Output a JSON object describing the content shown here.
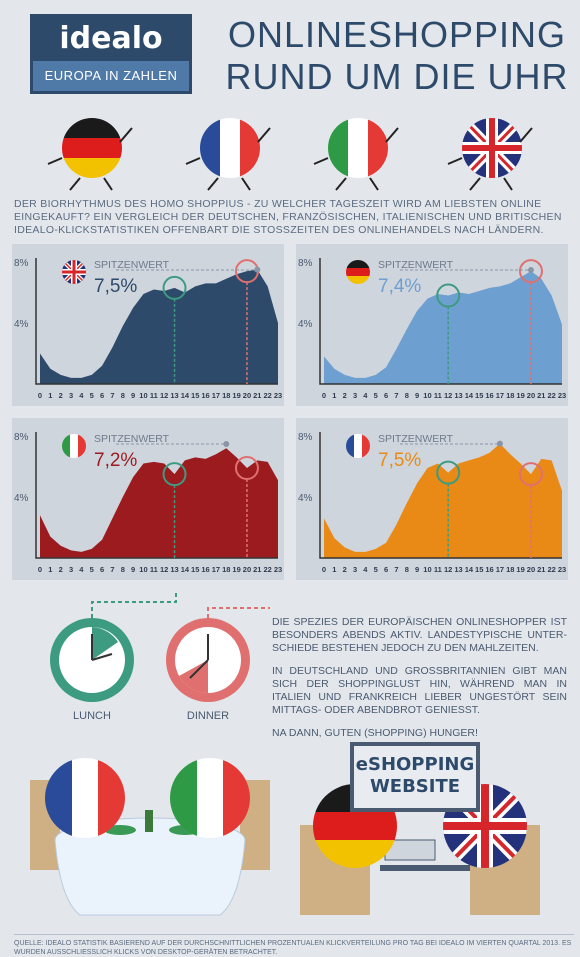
{
  "logo": {
    "brand": "idealo",
    "subtitle": "EUROPA IN ZAHLEN"
  },
  "title": {
    "line1": "ONLINESHOPPING",
    "line2": "RUND UM DIE UHR"
  },
  "intro": "DER BIORHYTHMUS DES HOMO SHOPPIUS - ZU WELCHER TAGESZEIT WIRD AM LIEBSTEN ONLINE EINGEKAUFT? EIN VERGLEICH DER DEUTSCHEN, FRANZÖSISCHEN, ITALIENISCHEN UND BRITISCHEN IDEALO-KLICKSTATISTIKEN OFFENBART DIE STOßZEITEN DES ONLINEHANDELS NACH LÄNDERN.",
  "colors": {
    "uk": "#2e4a6b",
    "de": "#6d9fd0",
    "it": "#9b1b1e",
    "fr": "#e98a16",
    "lunch": "#3c9b80",
    "dinner": "#e07070"
  },
  "chart_data": [
    {
      "type": "area",
      "country": "uk",
      "flag": "uk-flag-icon",
      "peak_label": "SPITZENWERT",
      "peak_value": "7,5%",
      "y_ticks": [
        "8%",
        "4%"
      ],
      "x": [
        0,
        1,
        2,
        3,
        4,
        5,
        6,
        7,
        8,
        9,
        10,
        11,
        12,
        13,
        14,
        15,
        16,
        17,
        18,
        19,
        20,
        21,
        22,
        23
      ],
      "values": [
        2.0,
        1.0,
        0.6,
        0.4,
        0.4,
        0.6,
        1.2,
        2.4,
        3.8,
        5.0,
        5.9,
        6.2,
        6.1,
        6.3,
        6.0,
        6.4,
        6.6,
        6.6,
        6.9,
        7.2,
        7.4,
        7.5,
        6.4,
        4.0
      ],
      "ylim": [
        0,
        8
      ],
      "lunch_hour": 13,
      "peak_hour": 20
    },
    {
      "type": "area",
      "country": "de",
      "flag": "de-flag-icon",
      "peak_label": "SPITZENWERT",
      "peak_value": "7,4%",
      "y_ticks": [
        "8%",
        "4%"
      ],
      "x": [
        0,
        1,
        2,
        3,
        4,
        5,
        6,
        7,
        8,
        9,
        10,
        11,
        12,
        13,
        14,
        15,
        16,
        17,
        18,
        19,
        20,
        21,
        22,
        23
      ],
      "values": [
        1.8,
        1.0,
        0.6,
        0.4,
        0.4,
        0.6,
        1.1,
        2.3,
        3.6,
        4.8,
        5.6,
        5.9,
        5.8,
        6.0,
        5.9,
        6.1,
        6.3,
        6.4,
        6.6,
        7.0,
        7.4,
        6.9,
        5.8,
        3.9
      ],
      "ylim": [
        0,
        8
      ],
      "lunch_hour": 12,
      "peak_hour": 20
    },
    {
      "type": "area",
      "country": "it",
      "flag": "it-flag-icon",
      "peak_label": "SPITZENWERT",
      "peak_value": "7,2%",
      "y_ticks": [
        "8%",
        "4%"
      ],
      "x": [
        0,
        1,
        2,
        3,
        4,
        5,
        6,
        7,
        8,
        9,
        10,
        11,
        12,
        13,
        14,
        15,
        16,
        17,
        18,
        19,
        20,
        21,
        22,
        23
      ],
      "values": [
        2.8,
        1.4,
        0.8,
        0.5,
        0.4,
        0.6,
        1.2,
        2.6,
        4.0,
        5.3,
        6.2,
        6.3,
        6.2,
        5.5,
        6.4,
        6.6,
        6.5,
        6.8,
        7.2,
        6.6,
        5.9,
        6.4,
        6.3,
        5.1
      ],
      "ylim": [
        0,
        8
      ],
      "lunch_hour": 13,
      "peak_hour": 20
    },
    {
      "type": "area",
      "country": "fr",
      "flag": "fr-flag-icon",
      "peak_label": "SPITZENWERT",
      "peak_value": "7,5%",
      "y_ticks": [
        "8%",
        "4%"
      ],
      "x": [
        0,
        1,
        2,
        3,
        4,
        5,
        6,
        7,
        8,
        9,
        10,
        11,
        12,
        13,
        14,
        15,
        16,
        17,
        18,
        19,
        20,
        21,
        22,
        23
      ],
      "values": [
        2.6,
        1.3,
        0.7,
        0.4,
        0.4,
        0.6,
        1.0,
        2.2,
        3.6,
        4.9,
        5.9,
        6.2,
        5.6,
        6.2,
        6.4,
        6.6,
        6.9,
        7.5,
        6.8,
        6.2,
        5.5,
        6.5,
        6.4,
        4.4
      ],
      "ylim": [
        0,
        8
      ],
      "lunch_hour": 12,
      "peak_hour": 20
    }
  ],
  "clocks": {
    "lunch_label": "LUNCH",
    "dinner_label": "DINNER"
  },
  "text": {
    "p1": "DIE SPEZIES DER EUROPÄISCHEN ONLINESHOPPER IST BESONDERS ABENDS AKTIV. LANDESTYPISCHE UNTER-SCHIEDE BESTEHEN JEDOCH ZU DEN MAHLZEITEN.",
    "p2": "IN DEUTSCHLAND UND GROßBRITANNIEN GIBT MAN SICH DER SHOPPINGLUST HIN, WÄHREND MAN IN ITALIEN UND FRANKREICH LIEBER UNGESTÖRT SEIN MITTAGS- ODER ABENDBROT GENIEßT.",
    "p3": "NA DANN, GUTEN (SHOPPING) HUNGER!"
  },
  "eshop": {
    "line1": "eSHOPPING",
    "line2": "WEBSITE"
  },
  "footer": "QUELLE: IDEALO STATISTIK BASIEREND AUF DER DURCHSCHNITTLICHEN PROZENTUALEN KLICKVERTEILUNG PRO TAG BEI IDEALO IM VIERTEN QUARTAL 2013. ES WURDEN AUSSCHLIEßLICH KLICKS VON DESKTOP-GERÄTEN BETRACHTET."
}
